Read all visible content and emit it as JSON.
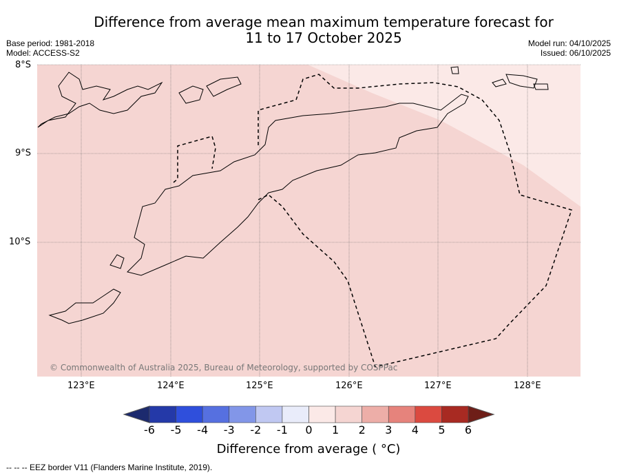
{
  "title_line1": "Difference from average mean maximum temperature forecast for",
  "title_line2": "11 to 17 October 2025",
  "base_period": "Base period: 1981-2018",
  "model": "Model: ACCESS-S2",
  "model_run": "Model run: 04/10/2025",
  "issued": "Issued: 06/10/2025",
  "lat_ticks": [
    "8°S",
    "9°S",
    "10°S"
  ],
  "lon_ticks": [
    "123°E",
    "124°E",
    "125°E",
    "126°E",
    "127°E",
    "128°E"
  ],
  "copyright": "© Commonwealth of Australia 2025, Bureau of Meteorology, supported by COSPPac",
  "colorbar": {
    "ticks": [
      "-6",
      "-5",
      "-4",
      "-3",
      "-2",
      "-1",
      "0",
      "1",
      "2",
      "3",
      "4",
      "5",
      "6"
    ],
    "colors": [
      "#1c2a6e",
      "#2439a8",
      "#2f4fdc",
      "#5670e0",
      "#8296e8",
      "#c0c8f2",
      "#e9ecfa",
      "#fbe9e7",
      "#f5d5d2",
      "#edaea8",
      "#e6837c",
      "#db4a40",
      "#a82a22",
      "#6e1e18"
    ],
    "label": "Difference from average ( °C)"
  },
  "map_colors": {
    "band_1_2": "#f5d5d2",
    "band_0_1": "#fbe9e7"
  },
  "footer": "-- -- -- EEZ border V11 (Flanders Marine Institute, 2019)."
}
